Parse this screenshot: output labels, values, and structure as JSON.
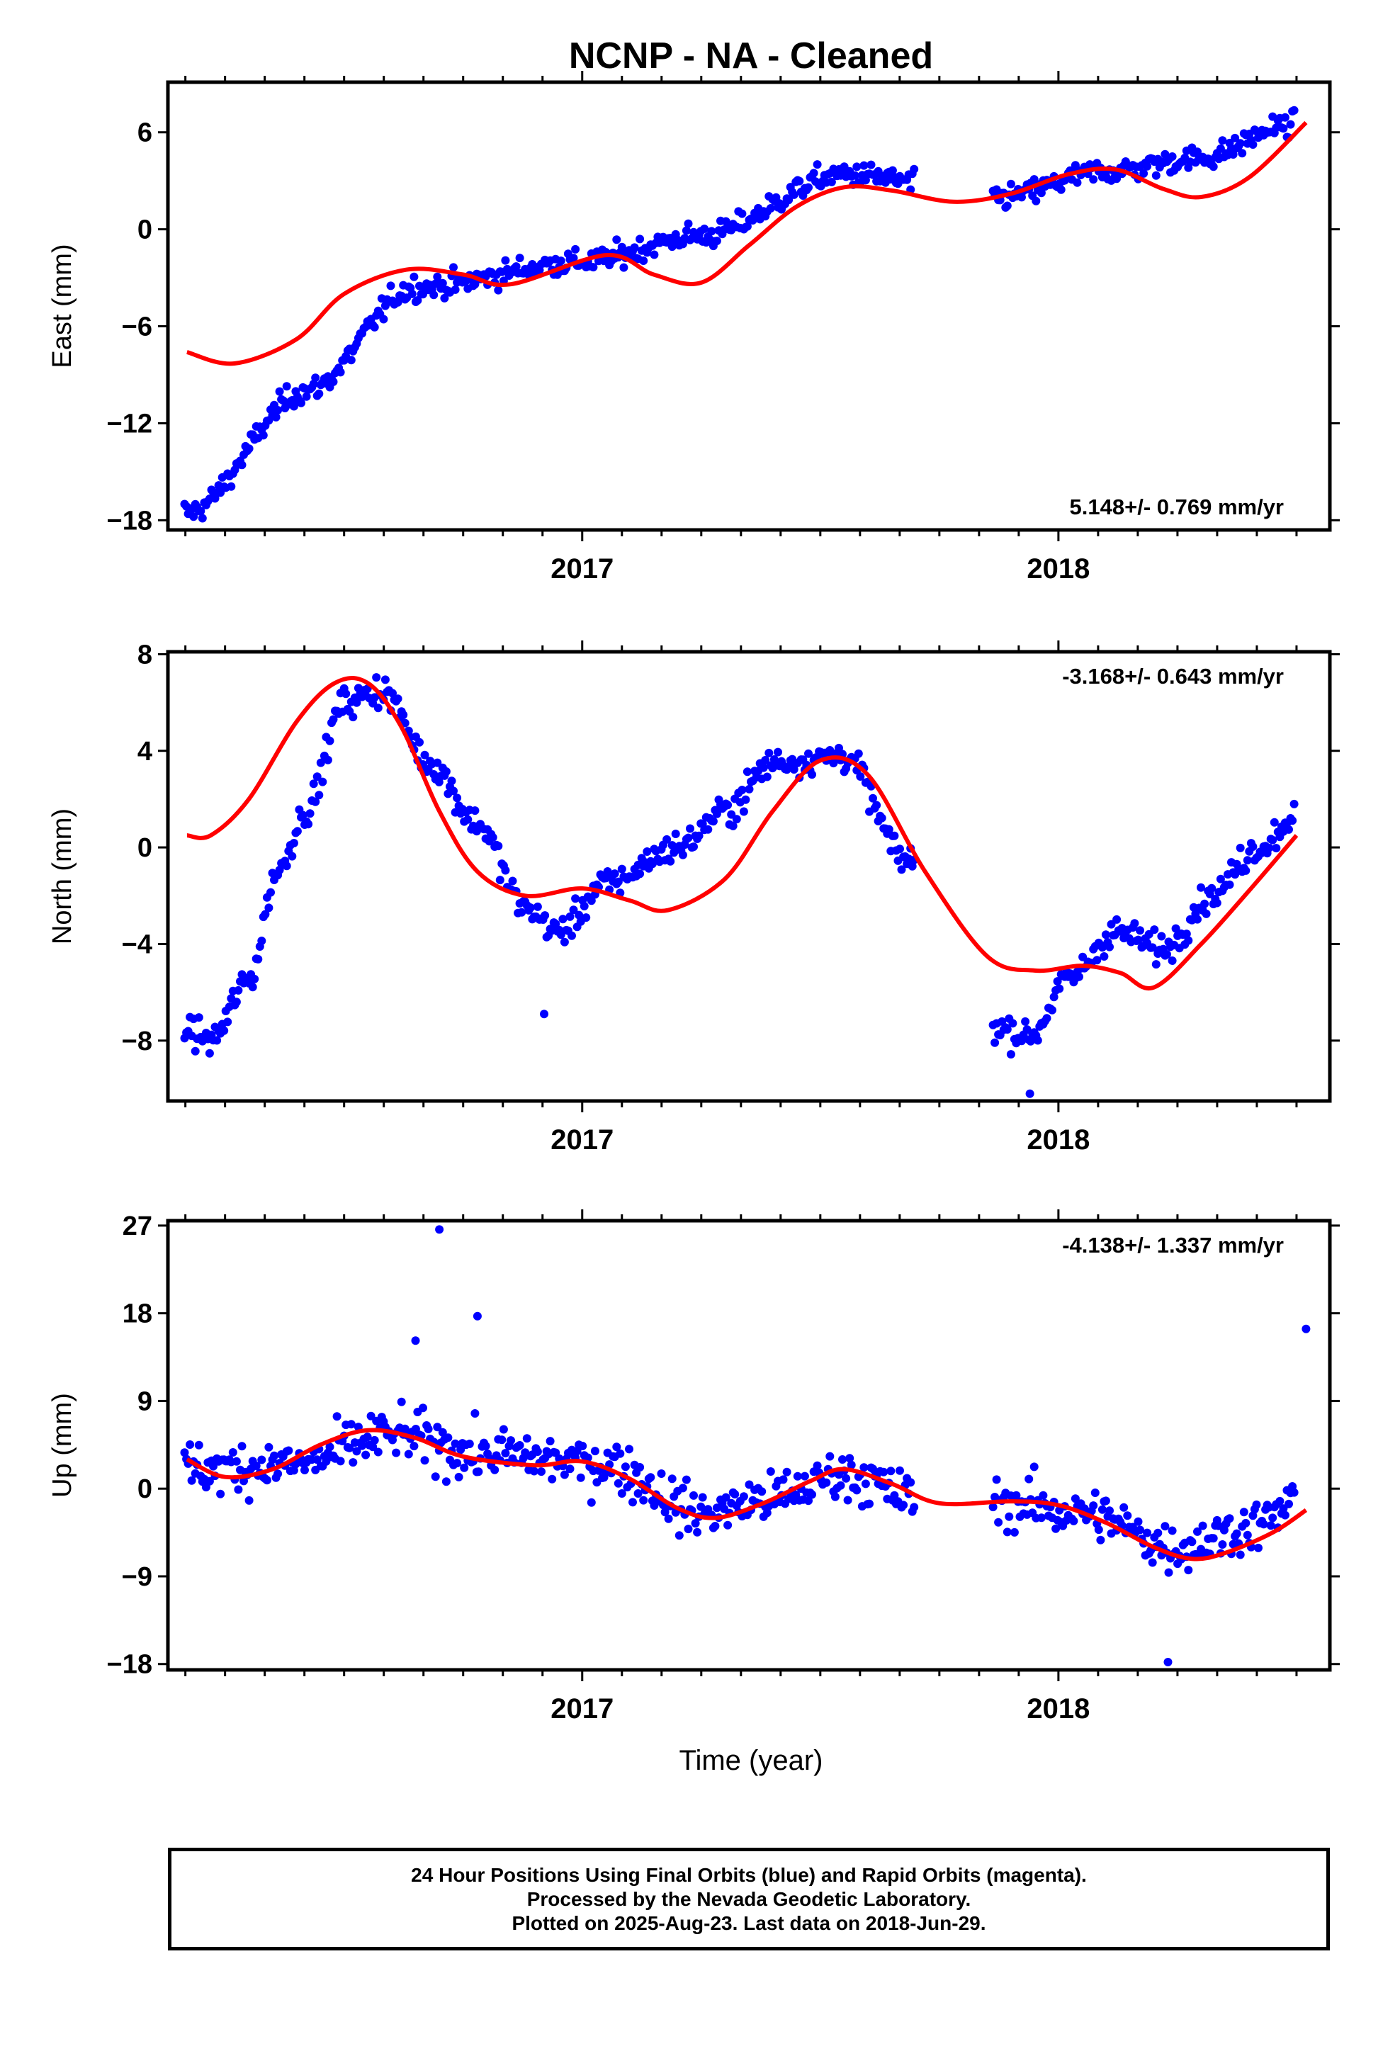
{
  "title": "NCNP  - NA - Cleaned",
  "xlabel": "Time (year)",
  "caption": [
    "24 Hour Positions Using Final Orbits (blue) and Rapid Orbits (magenta).",
    "Processed by the Nevada Geodetic Laboratory.",
    "Plotted on 2025-Aug-23. Last data on 2018-Jun-29."
  ],
  "colors": {
    "points": "#0000ff",
    "fit": "#ff0000",
    "frame": "#000000"
  },
  "chart_data": [
    {
      "type": "scatter",
      "ylabel": "East (mm)",
      "rate": "5.148+/- 0.769 mm/yr",
      "rate_position": "bottom-right",
      "xlim": [
        2016.13,
        2018.57
      ],
      "ylim": [
        -18.6,
        9.1
      ],
      "yticks": [
        -18,
        -12,
        -6,
        0,
        6
      ],
      "xticks": [
        2017,
        2018
      ],
      "grid": false,
      "gaps": [
        [
          2017.7,
          2017.86
        ]
      ],
      "trend": {
        "anchors": [
          [
            2016.17,
            -17.5
          ],
          [
            2016.42,
            -10.0
          ],
          [
            2016.65,
            -3.6
          ],
          [
            2017.0,
            -2.0
          ],
          [
            2017.25,
            -0.4
          ],
          [
            2017.55,
            3.4
          ],
          [
            2017.88,
            2.0
          ],
          [
            2018.1,
            3.6
          ],
          [
            2018.3,
            4.4
          ],
          [
            2018.48,
            6.4
          ]
        ],
        "scatter": 1.2,
        "outliers": []
      },
      "fit": {
        "x": [
          2016.17,
          2016.27,
          2016.4,
          2016.5,
          2016.63,
          2016.75,
          2016.85,
          2017.05,
          2017.15,
          2017.25,
          2017.35,
          2017.45,
          2017.55,
          2017.65,
          2017.78,
          2017.9,
          2018.02,
          2018.12,
          2018.22,
          2018.3,
          2018.4,
          2018.52
        ],
        "y": [
          -7.6,
          -8.3,
          -6.8,
          -4.0,
          -2.5,
          -2.8,
          -3.4,
          -1.6,
          -2.8,
          -3.3,
          -1.0,
          1.4,
          2.6,
          2.4,
          1.7,
          2.2,
          3.4,
          3.7,
          2.5,
          2.0,
          3.2,
          6.6
        ]
      }
    },
    {
      "type": "scatter",
      "ylabel": "North (mm)",
      "rate": "-3.168+/- 0.643 mm/yr",
      "rate_position": "top-right",
      "xlim": [
        2016.13,
        2018.57
      ],
      "ylim": [
        -10.5,
        8.1
      ],
      "yticks": [
        -8,
        -4,
        0,
        4,
        8
      ],
      "xticks": [
        2017,
        2018
      ],
      "grid": false,
      "gaps": [
        [
          2017.7,
          2017.86
        ]
      ],
      "trend": {
        "anchors": [
          [
            2016.17,
            -7.5
          ],
          [
            2016.22,
            -8.0
          ],
          [
            2016.3,
            -5.5
          ],
          [
            2016.36,
            -1.0
          ],
          [
            2016.42,
            1.5
          ],
          [
            2016.5,
            6.0
          ],
          [
            2016.58,
            6.5
          ],
          [
            2016.68,
            3.5
          ],
          [
            2016.78,
            1.0
          ],
          [
            2016.88,
            -2.5
          ],
          [
            2016.95,
            -3.5
          ],
          [
            2017.05,
            -1.5
          ],
          [
            2017.2,
            0.0
          ],
          [
            2017.3,
            1.5
          ],
          [
            2017.4,
            3.5
          ],
          [
            2017.55,
            3.8
          ],
          [
            2017.68,
            -0.5
          ],
          [
            2017.88,
            -7.5
          ],
          [
            2017.94,
            -7.8
          ],
          [
            2018.02,
            -5.5
          ],
          [
            2018.12,
            -3.5
          ],
          [
            2018.22,
            -4.2
          ],
          [
            2018.32,
            -2.0
          ],
          [
            2018.42,
            0.0
          ],
          [
            2018.52,
            1.8
          ]
        ],
        "scatter": 1.0,
        "outliers": [
          [
            2016.92,
            -6.9
          ],
          [
            2017.94,
            -10.2
          ]
        ]
      },
      "fit": {
        "x": [
          2016.17,
          2016.22,
          2016.3,
          2016.4,
          2016.48,
          2016.55,
          2016.62,
          2016.7,
          2016.78,
          2016.88,
          2017.0,
          2017.1,
          2017.18,
          2017.3,
          2017.4,
          2017.5,
          2017.6,
          2017.72,
          2017.85,
          2017.95,
          2018.05,
          2018.13,
          2018.2,
          2018.3,
          2018.4,
          2018.5
        ],
        "y": [
          0.5,
          0.5,
          2.0,
          5.2,
          6.8,
          6.8,
          5.0,
          1.5,
          -1.0,
          -2.0,
          -1.7,
          -2.2,
          -2.6,
          -1.3,
          1.5,
          3.6,
          3.0,
          -1.0,
          -4.5,
          -5.1,
          -4.9,
          -5.2,
          -5.8,
          -4.0,
          -1.8,
          0.5
        ]
      }
    },
    {
      "type": "scatter",
      "ylabel": "Up (mm)",
      "rate": "-4.138+/- 1.337 mm/yr",
      "rate_position": "top-right",
      "xlim": [
        2016.13,
        2018.57
      ],
      "ylim": [
        -18.6,
        27.5
      ],
      "yticks": [
        -18,
        -9,
        0,
        9,
        18,
        27
      ],
      "xticks": [
        2017,
        2018
      ],
      "grid": false,
      "gaps": [
        [
          2017.7,
          2017.86
        ]
      ],
      "trend": {
        "anchors": [
          [
            2016.17,
            2.0
          ],
          [
            2016.4,
            2.5
          ],
          [
            2016.6,
            5.5
          ],
          [
            2016.8,
            3.5
          ],
          [
            2017.05,
            2.5
          ],
          [
            2017.25,
            -2.5
          ],
          [
            2017.4,
            -1.0
          ],
          [
            2017.55,
            1.5
          ],
          [
            2017.7,
            -1.0
          ],
          [
            2017.9,
            -1.5
          ],
          [
            2018.05,
            -2.5
          ],
          [
            2018.25,
            -6.0
          ],
          [
            2018.4,
            -4.0
          ],
          [
            2018.52,
            -1.0
          ]
        ],
        "scatter": 4.2,
        "outliers": [
          [
            2016.7,
            26.6
          ],
          [
            2016.78,
            17.7
          ],
          [
            2018.52,
            16.4
          ],
          [
            2018.23,
            -17.8
          ],
          [
            2016.65,
            15.2
          ]
        ]
      },
      "fit": {
        "x": [
          2016.17,
          2016.25,
          2016.35,
          2016.45,
          2016.55,
          2016.65,
          2016.75,
          2016.9,
          2017.0,
          2017.1,
          2017.2,
          2017.28,
          2017.38,
          2017.48,
          2017.55,
          2017.65,
          2017.75,
          2017.9,
          2018.0,
          2018.1,
          2018.2,
          2018.28,
          2018.35,
          2018.45,
          2018.52
        ],
        "y": [
          3.0,
          1.2,
          2.0,
          4.5,
          6.0,
          5.2,
          3.3,
          2.4,
          2.8,
          1.0,
          -2.0,
          -3.0,
          -1.5,
          0.8,
          2.0,
          0.5,
          -1.5,
          -1.3,
          -1.7,
          -3.5,
          -6.0,
          -7.2,
          -6.6,
          -4.5,
          -2.2
        ]
      }
    }
  ]
}
